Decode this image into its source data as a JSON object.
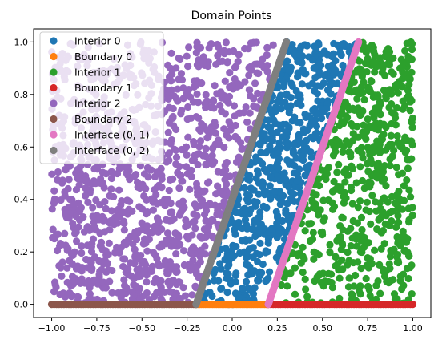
{
  "chart_data": {
    "type": "scatter",
    "title": "Domain Points",
    "xlabel": "",
    "ylabel": "",
    "xlim": [
      -1.1,
      1.1
    ],
    "ylim": [
      -0.05,
      1.05
    ],
    "xticks": [
      -1.0,
      -0.75,
      -0.5,
      -0.25,
      0.0,
      0.25,
      0.5,
      0.75,
      1.0
    ],
    "xtick_labels": [
      "−1.00",
      "−0.75",
      "−0.50",
      "−0.25",
      "0.00",
      "0.25",
      "0.50",
      "0.75",
      "1.00"
    ],
    "yticks": [
      0.0,
      0.2,
      0.4,
      0.6,
      0.8,
      1.0
    ],
    "ytick_labels": [
      "0.0",
      "0.2",
      "0.4",
      "0.6",
      "0.8",
      "1.0"
    ],
    "grid": false,
    "legend_position": "top-left",
    "series": [
      {
        "name": "Interior 0",
        "color": "#1f77b4",
        "region": "between lines x=0.5y-0.2 and x=0.5y+0.2",
        "n_points": 600
      },
      {
        "name": "Boundary 0",
        "color": "#ff7f0e",
        "x_range": [
          -0.2,
          0.2
        ],
        "y": 0.0,
        "n_points": 40
      },
      {
        "name": "Interior 1",
        "color": "#2ca02c",
        "region": "right of line x=0.5y+0.2, x up to 1.0",
        "n_points": 600
      },
      {
        "name": "Boundary 1",
        "color": "#d62728",
        "x_range": [
          0.2,
          1.0
        ],
        "y": 0.0,
        "n_points": 60
      },
      {
        "name": "Interior 2",
        "color": "#9467bd",
        "region": "left of line x=0.5y-0.2, x from -1.0",
        "n_points": 1100
      },
      {
        "name": "Boundary 2",
        "color": "#8c564b",
        "x_range": [
          -1.0,
          -0.2
        ],
        "y": 0.0,
        "n_points": 60
      },
      {
        "name": "Interface (0, 1)",
        "color": "#e377c2",
        "line": {
          "x0": 0.2,
          "y0": 0.0,
          "x1": 0.7,
          "y1": 1.0
        },
        "n_points": 200
      },
      {
        "name": "Interface (0, 2)",
        "color": "#7f7f7f",
        "line": {
          "x0": -0.2,
          "y0": 0.0,
          "x1": 0.3,
          "y1": 1.0
        },
        "n_points": 200
      }
    ]
  }
}
